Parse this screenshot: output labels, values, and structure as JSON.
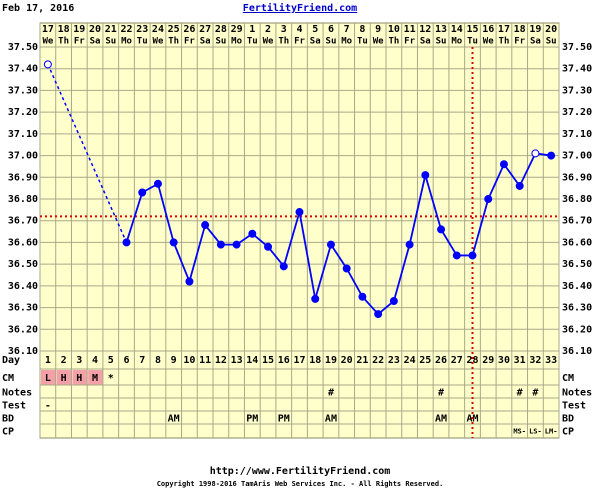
{
  "chart_data": {
    "type": "line",
    "start_date": "Feb 17, 2016",
    "title": "FertilityFriend.com",
    "dates": [
      "17",
      "18",
      "19",
      "20",
      "21",
      "22",
      "23",
      "24",
      "25",
      "26",
      "27",
      "28",
      "29",
      "1",
      "2",
      "3",
      "4",
      "5",
      "6",
      "7",
      "8",
      "9",
      "10",
      "11",
      "12",
      "13",
      "14",
      "15",
      "16",
      "17",
      "18",
      "19",
      "20"
    ],
    "weekdays": [
      "We",
      "Th",
      "Fr",
      "Sa",
      "Su",
      "Mo",
      "Tu",
      "We",
      "Th",
      "Fr",
      "Sa",
      "Su",
      "Mo",
      "Tu",
      "We",
      "Th",
      "Fr",
      "Sa",
      "Su",
      "Mo",
      "Tu",
      "We",
      "Th",
      "Fr",
      "Sa",
      "Su",
      "Mo",
      "Tu",
      "We",
      "Th",
      "Fr",
      "Sa",
      "Su"
    ],
    "categories": [
      1,
      2,
      3,
      4,
      5,
      6,
      7,
      8,
      9,
      10,
      11,
      12,
      13,
      14,
      15,
      16,
      17,
      18,
      19,
      20,
      21,
      22,
      23,
      24,
      25,
      26,
      27,
      28,
      29,
      30,
      31,
      32,
      33
    ],
    "series": [
      {
        "color": "#0000ff",
        "values": [
          37.42,
          null,
          null,
          null,
          null,
          36.6,
          36.83,
          36.87,
          36.6,
          36.42,
          36.68,
          36.59,
          36.59,
          36.64,
          36.58,
          36.49,
          36.74,
          36.34,
          36.59,
          36.48,
          36.35,
          36.27,
          36.33,
          36.59,
          36.91,
          36.66,
          36.54,
          36.54,
          36.8,
          36.96,
          36.86,
          37.01,
          37.0
        ],
        "discarded_days": [
          1,
          32
        ]
      }
    ],
    "coverline": 36.72,
    "ovulation_day": 28,
    "marker_line_color": "#dd0000",
    "ylim": [
      36.1,
      37.5
    ],
    "yticks": [
      {
        "value": 36.1,
        "label": "36.10"
      },
      {
        "value": 36.2,
        "label": "36.20"
      },
      {
        "value": 36.3,
        "label": "36.30"
      },
      {
        "value": 36.4,
        "label": "36.40"
      },
      {
        "value": 36.5,
        "label": "36.50"
      },
      {
        "value": 36.6,
        "label": "36.60"
      },
      {
        "value": 36.7,
        "label": "36.70"
      },
      {
        "value": 36.8,
        "label": "36.80"
      },
      {
        "value": 36.9,
        "label": "36.90"
      },
      {
        "value": 37.0,
        "label": "37.00"
      },
      {
        "value": 37.1,
        "label": "37.10"
      },
      {
        "value": 37.2,
        "label": "37.20"
      },
      {
        "value": 37.3,
        "label": "37.30"
      },
      {
        "value": 37.4,
        "label": "37.40"
      },
      {
        "value": 37.5,
        "label": "37.50"
      }
    ],
    "grid": true,
    "day_label": "Day",
    "rows": [
      {
        "label": "CM",
        "highlight_color": "#f4a0a8",
        "highlighted_days": [
          1,
          2,
          3,
          4
        ],
        "cells": [
          "L",
          "H",
          "H",
          "M",
          "*",
          null,
          null,
          null,
          null,
          null,
          null,
          null,
          null,
          null,
          null,
          null,
          null,
          null,
          null,
          null,
          null,
          null,
          null,
          null,
          null,
          null,
          null,
          null,
          null,
          null,
          null,
          null,
          null
        ]
      },
      {
        "label": "Notes",
        "cells": [
          null,
          null,
          null,
          null,
          null,
          null,
          null,
          null,
          null,
          null,
          null,
          null,
          null,
          null,
          null,
          null,
          null,
          null,
          "#",
          null,
          null,
          null,
          null,
          null,
          null,
          "#",
          null,
          null,
          null,
          null,
          "#",
          "#",
          null
        ]
      },
      {
        "label": "Test",
        "cells": [
          "-",
          null,
          null,
          null,
          null,
          null,
          null,
          null,
          null,
          null,
          null,
          null,
          null,
          null,
          null,
          null,
          null,
          null,
          null,
          null,
          null,
          null,
          null,
          null,
          null,
          null,
          null,
          null,
          null,
          null,
          null,
          null,
          null
        ]
      },
      {
        "label": "BD",
        "cells": [
          null,
          null,
          null,
          null,
          null,
          null,
          null,
          null,
          "AM",
          null,
          null,
          null,
          null,
          "PM",
          null,
          "PM",
          null,
          null,
          "AM",
          null,
          null,
          null,
          null,
          null,
          null,
          "AM",
          null,
          "AM",
          null,
          null,
          null,
          null,
          null
        ]
      },
      {
        "label": "CP",
        "cells": [
          null,
          null,
          null,
          null,
          null,
          null,
          null,
          null,
          null,
          null,
          null,
          null,
          null,
          null,
          null,
          null,
          null,
          null,
          null,
          null,
          null,
          null,
          null,
          null,
          null,
          null,
          null,
          null,
          null,
          null,
          "MS-",
          "LS-",
          "LM-"
        ]
      }
    ],
    "url": "http://www.FertilityFriend.com",
    "copyright": "Copyright 1998-2016 TamAris Web Services Inc. - All Rights Reserved."
  }
}
